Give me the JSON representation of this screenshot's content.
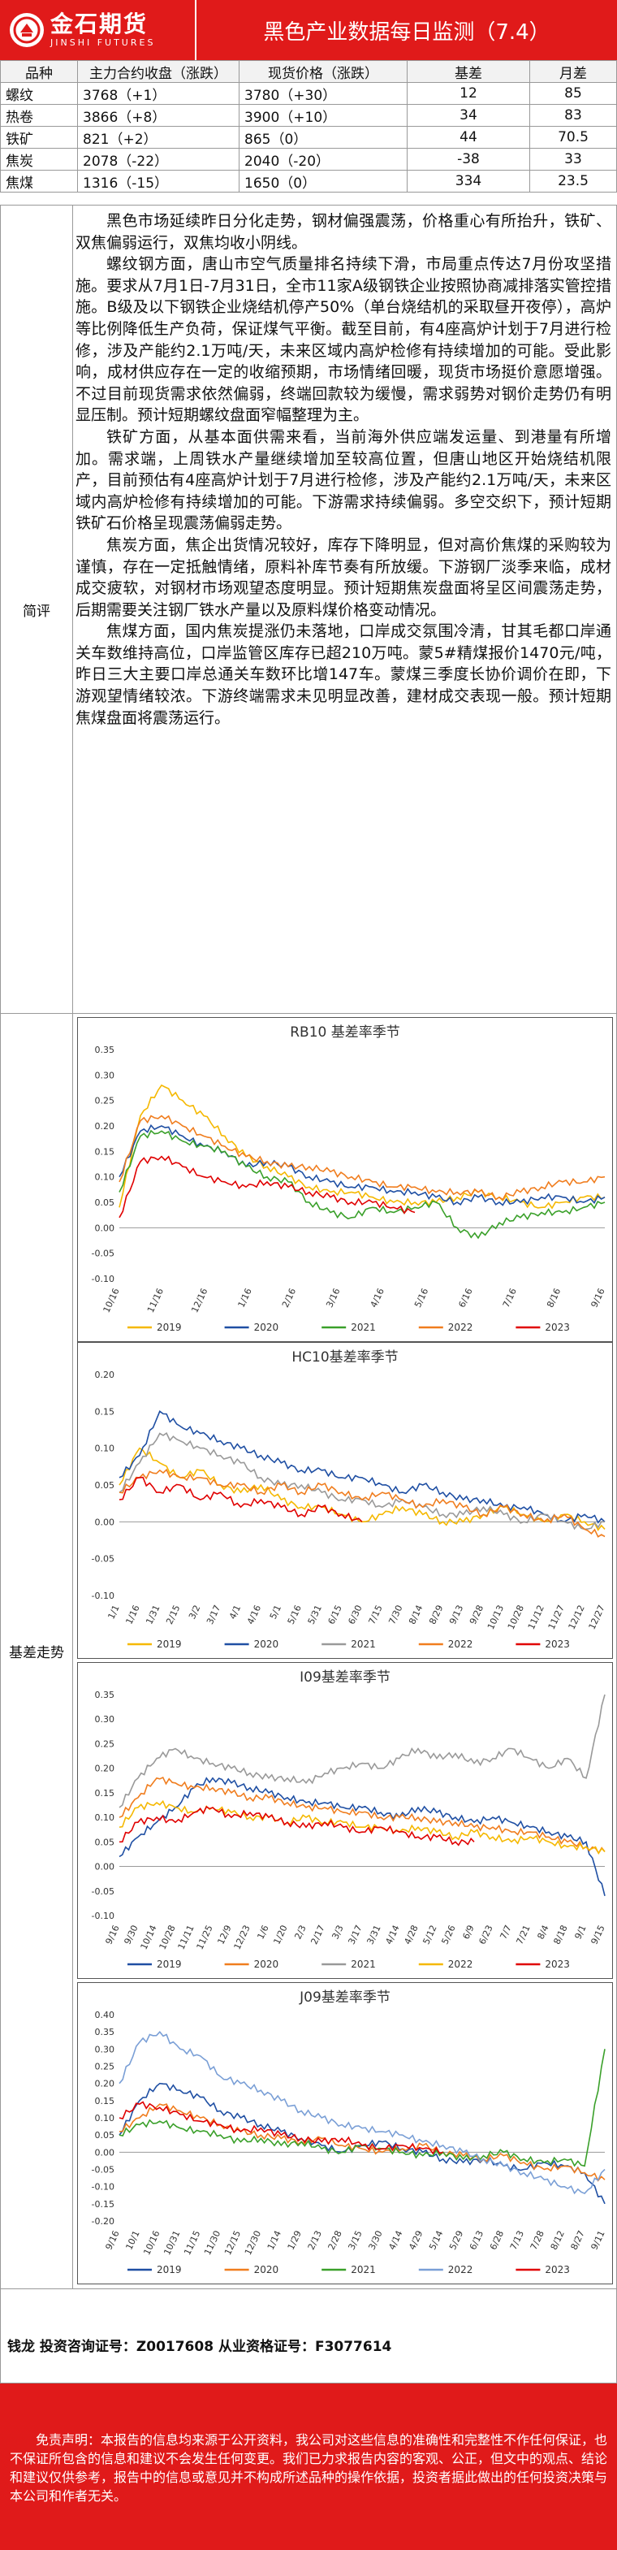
{
  "header": {
    "logo_cn": "金石期货",
    "logo_en": "JINSHI FUTURES",
    "title": "黑色产业数据每日监测（7.4）"
  },
  "table": {
    "headers": [
      "品种",
      "主力合约收盘（涨跌）",
      "现货价格（涨跌）",
      "基差",
      "月差"
    ],
    "rows": [
      [
        "螺纹",
        "3768（+1）",
        "3780（+30）",
        "12",
        "85"
      ],
      [
        "热卷",
        "3866（+8）",
        "3900（+10）",
        "34",
        "83"
      ],
      [
        "铁矿",
        "821（+2）",
        "865（0）",
        "44",
        "70.5"
      ],
      [
        "焦炭",
        "2078（-22）",
        "2040（-20）",
        "-38",
        "33"
      ],
      [
        "焦煤",
        "1316（-15）",
        "1650（0）",
        "334",
        "23.5"
      ]
    ]
  },
  "commentary": {
    "label": "简评",
    "paragraphs": [
      "黑色市场延续昨日分化走势，钢材偏强震荡，价格重心有所抬升，铁矿、双焦偏弱运行，双焦均收小阴线。",
      "螺纹钢方面，唐山市空气质量排名持续下滑，市局重点传达7月份攻坚措施。要求从7月1日-7月31日，全市11家A级钢铁企业按照协商减排落实管控措施。B级及以下钢铁企业烧结机停产50%（单台烧结机的采取昼开夜停），高炉等比例降低生产负荷，保证煤气平衡。截至目前，有4座高炉计划于7月进行检修，涉及产能约2.1万吨/天，未来区域内高炉检修有持续增加的可能。受此影响，成材供应存在一定的收缩预期，市场情绪回暖，现货市场挺价意愿增强。不过目前现货需求依然偏弱，终端回款较为缓慢，需求弱势对钢价走势仍有明显压制。预计短期螺纹盘面窄幅整理为主。",
      "铁矿方面，从基本面供需来看，当前海外供应端发运量、到港量有所增加。需求端，上周铁水产量继续增加至较高位置，但唐山地区开始烧结机限产，目前预估有4座高炉计划于7月进行检修，涉及产能约2.1万吨/天，未来区域内高炉检修有持续增加的可能。下游需求持续偏弱。多空交织下，预计短期铁矿石价格呈现震荡偏弱走势。",
      "焦炭方面，焦企出货情况较好，库存下降明显，但对高价焦煤的采购较为谨慎，存在一定抵触情绪，原料补库节奏有所放缓。下游钢厂淡季来临，成材成交疲软，对钢材市场观望态度明显。预计短期焦炭盘面将呈区间震荡走势，后期需要关注钢厂铁水产量以及原料煤价格变动情况。",
      "焦煤方面，国内焦炭提涨仍未落地，口岸成交氛围冷清，甘其毛都口岸通关车数维持高位，口岸监管区库存已超210万吨。蒙5#精煤报价1470元/吨，昨日三大主要口岸总通关车数环比增147车。蒙煤三季度长协价调价在即，下游观望情绪较浓。下游终端需求未见明显改善，建材成交表现一般。预计短期焦煤盘面将震荡运行。"
    ]
  },
  "charts_section_label": "基差走势",
  "chart_colors": {
    "2019": "#f5b800",
    "2020": "#1f4fa3",
    "2021": "#999999",
    "2022": "#f07d1e",
    "2023": "#e00000",
    "rb_2021": "#3aa02a",
    "j_2021": "#3aa02a",
    "j_2022": "#7a9fd6"
  },
  "chart_data": [
    {
      "type": "line",
      "title": "RB10 基差率季节",
      "ylim": [
        -0.1,
        0.35
      ],
      "yticks": [
        "0.35",
        "0.30",
        "0.25",
        "0.20",
        "0.15",
        "0.10",
        "0.05",
        "0.00",
        "-0.05",
        "-0.10"
      ],
      "x_ticks": [
        "10/16",
        "11/16",
        "12/16",
        "1/16",
        "2/16",
        "3/16",
        "4/16",
        "5/16",
        "6/16",
        "7/16",
        "8/16",
        "9/16"
      ],
      "series": [
        {
          "name": "2019",
          "color": "#f5b800",
          "values": [
            0.04,
            0.22,
            0.28,
            0.25,
            0.22,
            0.18,
            0.14,
            0.12,
            0.1,
            0.08,
            0.07,
            0.07,
            0.06,
            0.05,
            0.05,
            0.05,
            0.06,
            0.07,
            0.06,
            0.05,
            0.04,
            0.05,
            0.06,
            0.06
          ]
        },
        {
          "name": "2020",
          "color": "#1f4fa3",
          "values": [
            0.1,
            0.19,
            0.2,
            0.18,
            0.16,
            0.15,
            0.12,
            0.13,
            0.12,
            0.1,
            0.09,
            0.08,
            0.08,
            0.07,
            0.07,
            0.06,
            0.05,
            0.06,
            0.05,
            0.05,
            0.06,
            0.06,
            0.05,
            0.06
          ]
        },
        {
          "name": "2021",
          "color": "#3aa02a",
          "values": [
            0.07,
            0.18,
            0.19,
            0.17,
            0.16,
            0.15,
            0.12,
            0.1,
            0.09,
            0.05,
            0.03,
            0.02,
            0.04,
            0.03,
            0.04,
            0.05,
            0.0,
            -0.02,
            0.01,
            0.02,
            0.03,
            0.03,
            0.04,
            0.05
          ]
        },
        {
          "name": "2022",
          "color": "#f07d1e",
          "values": [
            0.09,
            0.21,
            0.22,
            0.2,
            0.18,
            0.16,
            0.14,
            0.13,
            0.12,
            0.12,
            0.11,
            0.1,
            0.09,
            0.08,
            0.08,
            0.07,
            0.07,
            0.07,
            0.06,
            0.07,
            0.08,
            0.09,
            0.09,
            0.1
          ]
        },
        {
          "name": "2023",
          "color": "#e00000",
          "values": [
            0.02,
            0.13,
            0.14,
            0.12,
            0.1,
            0.09,
            0.08,
            0.09,
            0.08,
            0.07,
            0.06,
            0.05,
            0.05,
            0.04,
            0.03
          ]
        }
      ]
    },
    {
      "type": "line",
      "title": "HC10基差率季节",
      "ylim": [
        -0.1,
        0.2
      ],
      "yticks": [
        "0.20",
        "0.15",
        "0.10",
        "0.05",
        "0.00",
        "-0.05",
        "-0.10"
      ],
      "x_ticks": [
        "1/1",
        "1/16",
        "1/31",
        "2/15",
        "3/2",
        "3/17",
        "4/1",
        "4/16",
        "5/1",
        "5/16",
        "5/31",
        "6/15",
        "6/30",
        "7/15",
        "7/30",
        "8/14",
        "8/29",
        "9/13",
        "9/28",
        "10/13",
        "10/28",
        "11/12",
        "11/27",
        "12/12",
        "12/27"
      ],
      "series": [
        {
          "name": "2019",
          "color": "#f5b800",
          "values": [
            0.05,
            0.1,
            0.08,
            0.06,
            0.07,
            0.05,
            0.04,
            0.05,
            0.03,
            0.02,
            0.02,
            0.01,
            0.0,
            0.01,
            0.02,
            0.01,
            0.0,
            0.0,
            0.01,
            0.02,
            0.01,
            0.0,
            0.01,
            0.0,
            -0.01
          ]
        },
        {
          "name": "2020",
          "color": "#1f4fa3",
          "values": [
            0.06,
            0.09,
            0.15,
            0.13,
            0.12,
            0.11,
            0.1,
            0.09,
            0.08,
            0.07,
            0.07,
            0.06,
            0.06,
            0.05,
            0.04,
            0.05,
            0.04,
            0.03,
            0.03,
            0.02,
            0.02,
            0.01,
            0.0,
            0.01,
            0.0
          ]
        },
        {
          "name": "2021",
          "color": "#999999",
          "values": [
            0.04,
            0.08,
            0.12,
            0.11,
            0.1,
            0.09,
            0.08,
            0.06,
            0.05,
            0.05,
            0.04,
            0.03,
            0.03,
            0.02,
            0.03,
            0.02,
            0.01,
            0.01,
            0.02,
            0.01,
            0.0,
            0.01,
            0.0,
            -0.01,
            0.0
          ]
        },
        {
          "name": "2022",
          "color": "#f07d1e",
          "values": [
            0.04,
            0.06,
            0.07,
            0.06,
            0.06,
            0.05,
            0.05,
            0.04,
            0.05,
            0.04,
            0.05,
            0.04,
            0.03,
            0.04,
            0.03,
            0.02,
            0.03,
            0.02,
            0.01,
            0.02,
            0.01,
            0.0,
            0.01,
            -0.01,
            -0.02
          ]
        },
        {
          "name": "2023",
          "color": "#e00000",
          "values": [
            0.03,
            0.06,
            0.04,
            0.05,
            0.03,
            0.04,
            0.02,
            0.03,
            0.02,
            0.01,
            0.02,
            0.01,
            0.0
          ]
        }
      ]
    },
    {
      "type": "line",
      "title": "I09基差率季节",
      "ylim": [
        -0.1,
        0.35
      ],
      "yticks": [
        "0.35",
        "0.30",
        "0.25",
        "0.20",
        "0.15",
        "0.10",
        "0.05",
        "0.00",
        "-0.05",
        "-0.10"
      ],
      "x_ticks": [
        "9/16",
        "9/30",
        "10/14",
        "10/28",
        "11/11",
        "11/25",
        "12/9",
        "12/23",
        "1/6",
        "1/20",
        "2/3",
        "2/17",
        "3/3",
        "3/17",
        "3/31",
        "4/14",
        "4/28",
        "5/12",
        "5/26",
        "6/9",
        "6/23",
        "7/7",
        "7/21",
        "8/4",
        "8/18",
        "9/1",
        "9/15"
      ],
      "series": [
        {
          "name": "2019",
          "color": "#1f4fa3",
          "values": [
            0.02,
            0.06,
            0.09,
            0.12,
            0.16,
            0.18,
            0.17,
            0.16,
            0.15,
            0.14,
            0.13,
            0.13,
            0.12,
            0.12,
            0.11,
            0.1,
            0.12,
            0.11,
            0.1,
            0.09,
            0.1,
            0.09,
            0.08,
            0.07,
            0.06,
            0.05,
            -0.06
          ]
        },
        {
          "name": "2020",
          "color": "#f07d1e",
          "values": [
            0.1,
            0.14,
            0.18,
            0.17,
            0.16,
            0.16,
            0.15,
            0.14,
            0.14,
            0.13,
            0.12,
            0.12,
            0.11,
            0.11,
            0.1,
            0.1,
            0.1,
            0.09,
            0.09,
            0.08,
            0.08,
            0.07,
            0.07,
            0.06,
            0.05,
            0.04,
            0.03
          ]
        },
        {
          "name": "2021",
          "color": "#999999",
          "values": [
            0.12,
            0.18,
            0.22,
            0.24,
            0.22,
            0.21,
            0.2,
            0.19,
            0.18,
            0.18,
            0.17,
            0.19,
            0.2,
            0.21,
            0.2,
            0.22,
            0.24,
            0.22,
            0.23,
            0.21,
            0.22,
            0.24,
            0.22,
            0.2,
            0.22,
            0.18,
            0.35
          ]
        },
        {
          "name": "2022",
          "color": "#f5b800",
          "values": [
            0.08,
            0.12,
            0.13,
            0.12,
            0.11,
            0.12,
            0.11,
            0.1,
            0.1,
            0.09,
            0.1,
            0.09,
            0.09,
            0.08,
            0.08,
            0.07,
            0.08,
            0.07,
            0.06,
            0.07,
            0.06,
            0.05,
            0.06,
            0.05,
            0.04,
            0.04,
            0.03
          ]
        },
        {
          "name": "2023",
          "color": "#e00000",
          "values": [
            0.05,
            0.09,
            0.1,
            0.09,
            0.11,
            0.12,
            0.1,
            0.11,
            0.1,
            0.09,
            0.08,
            0.09,
            0.08,
            0.07,
            0.08,
            0.07,
            0.06,
            0.06,
            0.05,
            0.05
          ]
        }
      ]
    },
    {
      "type": "line",
      "title": "J09基差率季节",
      "ylim": [
        -0.2,
        0.4
      ],
      "yticks": [
        "0.40",
        "0.35",
        "0.30",
        "0.25",
        "0.20",
        "0.15",
        "0.10",
        "0.05",
        "0.00",
        "-0.05",
        "-0.10",
        "-0.15",
        "-0.20"
      ],
      "x_ticks": [
        "9/16",
        "10/1",
        "10/16",
        "10/31",
        "11/15",
        "11/30",
        "12/15",
        "12/30",
        "1/14",
        "1/29",
        "2/13",
        "2/28",
        "3/15",
        "3/30",
        "4/14",
        "4/29",
        "5/14",
        "5/29",
        "6/13",
        "6/28",
        "7/13",
        "7/28",
        "8/12",
        "8/27",
        "9/11"
      ],
      "series": [
        {
          "name": "2019",
          "color": "#1f4fa3",
          "values": [
            0.05,
            0.15,
            0.2,
            0.18,
            0.16,
            0.12,
            0.1,
            0.08,
            0.06,
            0.04,
            0.02,
            0.0,
            0.02,
            0.03,
            0.01,
            0.0,
            -0.02,
            -0.03,
            -0.02,
            -0.04,
            -0.05,
            -0.03,
            -0.04,
            -0.06,
            -0.15
          ]
        },
        {
          "name": "2020",
          "color": "#f07d1e",
          "values": [
            0.06,
            0.1,
            0.14,
            0.12,
            0.1,
            0.08,
            0.06,
            0.05,
            0.04,
            0.03,
            0.04,
            0.02,
            0.01,
            0.0,
            0.01,
            0.02,
            0.0,
            -0.01,
            -0.02,
            -0.01,
            -0.03,
            -0.05,
            -0.04,
            -0.06,
            -0.08
          ]
        },
        {
          "name": "2021",
          "color": "#3aa02a",
          "values": [
            0.05,
            0.08,
            0.09,
            0.07,
            0.06,
            0.05,
            0.03,
            0.04,
            0.02,
            0.03,
            0.01,
            0.0,
            0.02,
            0.01,
            0.0,
            -0.01,
            0.0,
            -0.02,
            -0.01,
            0.0,
            -0.02,
            -0.03,
            -0.02,
            -0.04,
            0.3
          ]
        },
        {
          "name": "2022",
          "color": "#7a9fd6",
          "values": [
            0.2,
            0.32,
            0.35,
            0.3,
            0.28,
            0.22,
            0.2,
            0.18,
            0.15,
            0.12,
            0.1,
            0.08,
            0.07,
            0.06,
            0.05,
            0.03,
            0.02,
            0.0,
            -0.02,
            -0.04,
            -0.06,
            -0.08,
            -0.1,
            -0.12,
            -0.05
          ]
        },
        {
          "name": "2023",
          "color": "#e00000",
          "values": [
            0.1,
            0.14,
            0.13,
            0.11,
            0.09,
            0.08,
            0.06,
            0.07,
            0.05,
            0.04,
            0.03,
            0.04,
            0.02,
            0.01,
            0.02,
            0.01,
            0.0
          ]
        }
      ]
    }
  ],
  "footer": {
    "analyst": "钱龙 投资咨询证号：Z0017608 从业资格证号：F3077614",
    "disclaimer": "免责声明：本报告的信息均来源于公开资料，我公司对这些信息的准确性和完整性不作任何保证，也不保证所包含的信息和建议不会发生任何变更。我们已力求报告内容的客观、公正，但文中的观点、结论和建议仅供参考，报告中的信息或意见并不构成所述品种的操作依据，投资者据此做出的任何投资决策与本公司和作者无关。"
  }
}
